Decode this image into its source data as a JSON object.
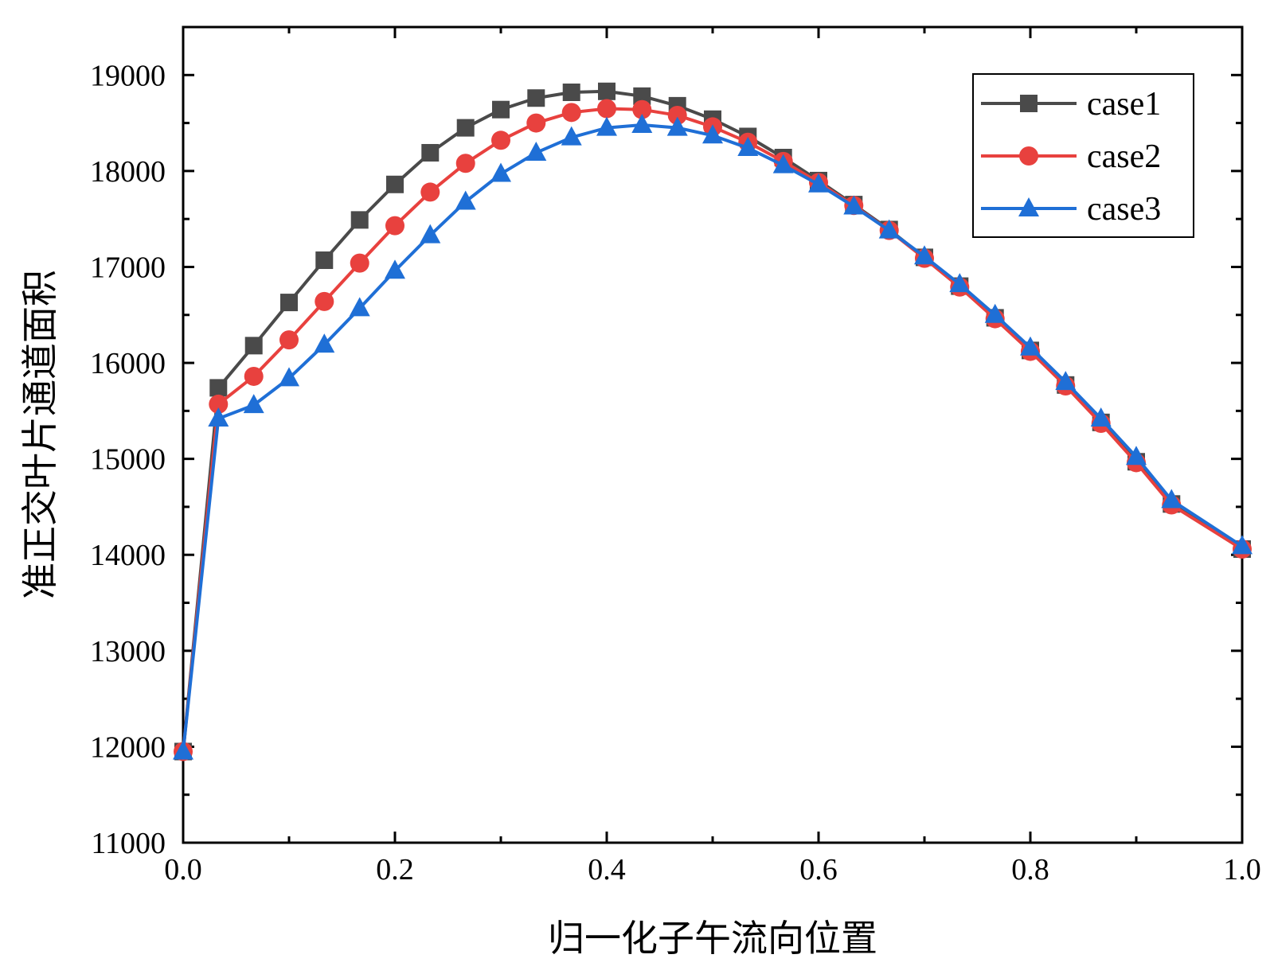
{
  "chart_data": {
    "type": "line",
    "title": "",
    "xlabel": "归一化子午流向位置",
    "ylabel": "准正交叶片通道面积",
    "xlim": [
      0.0,
      1.0
    ],
    "ylim": [
      11000,
      19500
    ],
    "xticks": [
      0.0,
      0.2,
      0.4,
      0.6,
      0.8,
      1.0
    ],
    "xtick_labels": [
      "0.0",
      "0.2",
      "0.4",
      "0.6",
      "0.8",
      "1.0"
    ],
    "yticks": [
      11000,
      12000,
      13000,
      14000,
      15000,
      16000,
      17000,
      18000,
      19000
    ],
    "ytick_labels": [
      "11000",
      "12000",
      "13000",
      "14000",
      "15000",
      "16000",
      "17000",
      "18000",
      "19000"
    ],
    "legend_position": "top-right",
    "grid": false,
    "x": [
      0.0,
      0.0333,
      0.0667,
      0.1,
      0.1333,
      0.1667,
      0.2,
      0.2333,
      0.2667,
      0.3,
      0.3333,
      0.3667,
      0.4,
      0.4333,
      0.4667,
      0.5,
      0.5333,
      0.5667,
      0.6,
      0.6333,
      0.6667,
      0.7,
      0.7333,
      0.7667,
      0.8,
      0.8333,
      0.8667,
      0.9,
      0.9333,
      1.0
    ],
    "series": [
      {
        "name": "case1",
        "color": "#4a4a4a",
        "marker": "square",
        "values": [
          11950,
          15740,
          16180,
          16630,
          17070,
          17490,
          17860,
          18190,
          18450,
          18640,
          18760,
          18820,
          18830,
          18780,
          18680,
          18540,
          18360,
          18140,
          17900,
          17650,
          17390,
          17100,
          16800,
          16470,
          16130,
          15770,
          15380,
          14970,
          14530,
          14060
        ]
      },
      {
        "name": "case2",
        "color": "#e8413e",
        "marker": "circle",
        "values": [
          11950,
          15570,
          15860,
          16240,
          16640,
          17040,
          17430,
          17780,
          18080,
          18320,
          18500,
          18610,
          18650,
          18640,
          18580,
          18460,
          18300,
          18100,
          17880,
          17640,
          17380,
          17090,
          16790,
          16460,
          16120,
          15760,
          15370,
          14960,
          14520,
          14060
        ]
      },
      {
        "name": "case3",
        "color": "#1f6fd6",
        "marker": "triangle",
        "values": [
          11950,
          15420,
          15560,
          15840,
          16190,
          16570,
          16960,
          17330,
          17680,
          17970,
          18190,
          18350,
          18450,
          18480,
          18450,
          18370,
          18240,
          18060,
          17860,
          17630,
          17380,
          17110,
          16820,
          16500,
          16160,
          15800,
          15420,
          15020,
          14570,
          14090
        ]
      }
    ]
  }
}
